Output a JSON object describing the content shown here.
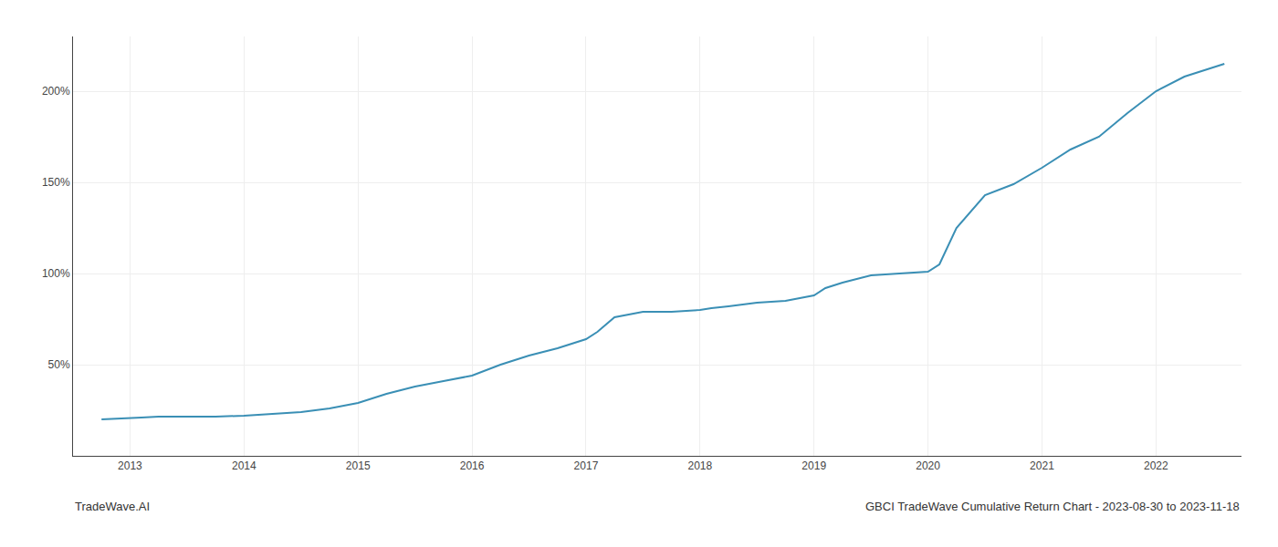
{
  "chart_data": {
    "type": "line",
    "annotations": [
      "TradeWave.AI",
      "GBCI TradeWave Cumulative Return Chart - 2023-08-30 to 2023-11-18"
    ],
    "x": [
      2012.75,
      2013.0,
      2013.1,
      2013.25,
      2013.5,
      2013.75,
      2014.0,
      2014.25,
      2014.5,
      2014.75,
      2015.0,
      2015.25,
      2015.5,
      2015.75,
      2016.0,
      2016.25,
      2016.5,
      2016.75,
      2017.0,
      2017.1,
      2017.25,
      2017.5,
      2017.75,
      2018.0,
      2018.1,
      2018.25,
      2018.5,
      2018.75,
      2019.0,
      2019.1,
      2019.25,
      2019.5,
      2019.75,
      2020.0,
      2020.1,
      2020.25,
      2020.5,
      2020.75,
      2021.0,
      2021.25,
      2021.5,
      2021.75,
      2022.0,
      2022.25,
      2022.5,
      2022.6
    ],
    "values": [
      20,
      20.5,
      21,
      21.5,
      21.5,
      21.5,
      22,
      23,
      24,
      26,
      29,
      34,
      38,
      41,
      44,
      50,
      55,
      59,
      64,
      68,
      76,
      79,
      79,
      80,
      81,
      82,
      84,
      85,
      88,
      92,
      95,
      99,
      100,
      101,
      105,
      125,
      143,
      149,
      158,
      168,
      175,
      188,
      200,
      208,
      213,
      215
    ],
    "color": "#3a8fb5",
    "xlim": [
      2012.5,
      2022.75
    ],
    "xticks": [
      2013,
      2014,
      2015,
      2016,
      2017,
      2018,
      2019,
      2020,
      2021,
      2022
    ],
    "ylim": [
      0,
      230
    ],
    "yticks": [
      {
        "value": 50,
        "label": "50%"
      },
      {
        "value": 100,
        "label": "100%"
      },
      {
        "value": 150,
        "label": "150%"
      },
      {
        "value": 200,
        "label": "200%"
      }
    ],
    "grid": true
  }
}
